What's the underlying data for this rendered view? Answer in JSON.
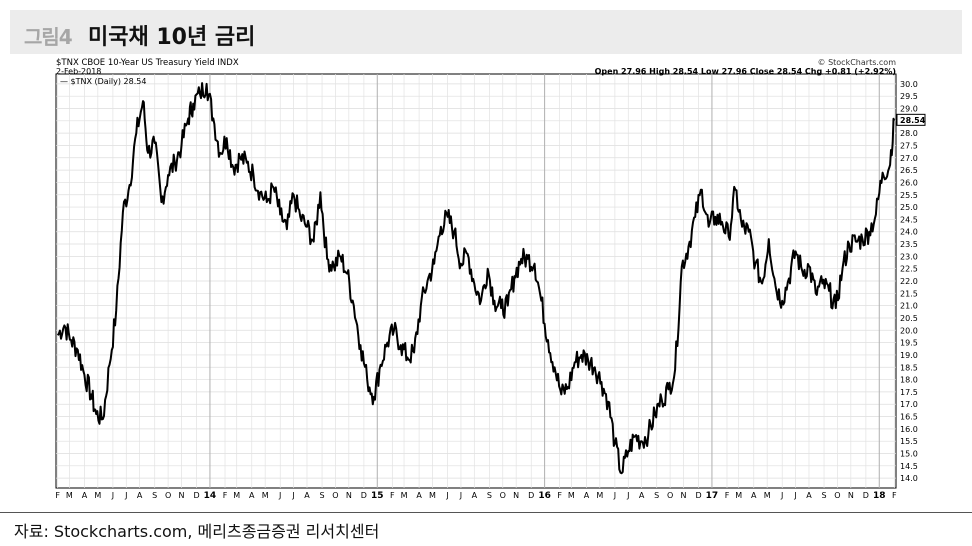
{
  "figure": {
    "label": "그림4",
    "title": "미국채 10년 금리"
  },
  "chart_header": {
    "symbol_line": "$TNX CBOE 10-Year US Treasury Yield INDX",
    "date": "2-Feb-2018",
    "copyright": "© StockCharts.com",
    "legend": "— $TNX (Daily) 28.54",
    "ohlc": "Open 27.96  High 28.54  Low 27.96  Close 28.54  Chg +0.81 (+2.92%)"
  },
  "source": "자료: Stockcharts.com, 메리츠종금증권 리서치센터",
  "chart_data": {
    "type": "line",
    "series": [
      {
        "name": "$TNX (Daily)",
        "x": [
          2013.09,
          2013.13,
          2013.17,
          2013.21,
          2013.25,
          2013.29,
          2013.32,
          2013.36,
          2013.4,
          2013.44,
          2013.48,
          2013.52,
          2013.56,
          2013.6,
          2013.63,
          2013.67,
          2013.71,
          2013.75,
          2013.79,
          2013.83,
          2013.87,
          2013.9,
          2013.94,
          2013.98,
          2014.02,
          2014.06,
          2014.1,
          2014.14,
          2014.18,
          2014.22,
          2014.26,
          2014.3,
          2014.34,
          2014.38,
          2014.42,
          2014.46,
          2014.5,
          2014.54,
          2014.58,
          2014.62,
          2014.66,
          2014.7,
          2014.74,
          2014.78,
          2014.82,
          2014.86,
          2014.9,
          2014.94,
          2014.98,
          2015.02,
          2015.06,
          2015.1,
          2015.14,
          2015.18,
          2015.22,
          2015.26,
          2015.3,
          2015.34,
          2015.38,
          2015.42,
          2015.46,
          2015.5,
          2015.54,
          2015.58,
          2015.62,
          2015.66,
          2015.7,
          2015.74,
          2015.78,
          2015.82,
          2015.86,
          2015.9,
          2015.94,
          2015.98,
          2016.02,
          2016.06,
          2016.1,
          2016.14,
          2016.18,
          2016.22,
          2016.26,
          2016.3,
          2016.34,
          2016.38,
          2016.42,
          2016.46,
          2016.5,
          2016.54,
          2016.58,
          2016.62,
          2016.66,
          2016.7,
          2016.74,
          2016.78,
          2016.82,
          2016.86,
          2016.9,
          2016.94,
          2016.98,
          2017.02,
          2017.06,
          2017.1,
          2017.14,
          2017.18,
          2017.22,
          2017.26,
          2017.3,
          2017.34,
          2017.38,
          2017.42,
          2017.46,
          2017.5,
          2017.54,
          2017.58,
          2017.62,
          2017.66,
          2017.7,
          2017.74,
          2017.78,
          2017.82,
          2017.86,
          2017.9,
          2017.94,
          2017.98,
          2018.02,
          2018.06,
          2018.09
        ],
        "y": [
          19.8,
          20.2,
          19.6,
          19.2,
          18.2,
          17.4,
          16.6,
          16.4,
          18.6,
          20.8,
          24.8,
          25.9,
          28.0,
          29.3,
          27.2,
          27.6,
          25.2,
          26.3,
          26.8,
          27.5,
          28.6,
          29.2,
          29.6,
          30.0,
          28.6,
          27.2,
          27.8,
          26.6,
          27.0,
          26.8,
          26.3,
          25.6,
          25.2,
          25.8,
          24.7,
          24.1,
          25.5,
          24.6,
          24.2,
          23.6,
          25.6,
          22.9,
          22.6,
          23.0,
          22.3,
          21.0,
          19.4,
          18.0,
          17.3,
          18.6,
          19.5,
          20.0,
          19.4,
          18.9,
          19.1,
          21.0,
          22.0,
          22.7,
          24.2,
          24.6,
          24.0,
          22.7,
          23.1,
          21.9,
          21.2,
          22.5,
          21.2,
          20.9,
          21.0,
          22.2,
          22.9,
          22.9,
          22.7,
          21.2,
          19.6,
          18.5,
          17.4,
          17.7,
          18.7,
          19.0,
          18.8,
          18.5,
          17.9,
          17.1,
          15.4,
          14.2,
          15.1,
          15.7,
          15.5,
          15.8,
          16.6,
          17.2,
          17.6,
          18.4,
          22.6,
          23.4,
          24.6,
          25.7,
          24.2,
          24.6,
          24.4,
          23.8,
          25.7,
          24.2,
          24.0,
          22.7,
          21.9,
          23.7,
          21.8,
          21.2,
          22.1,
          23.2,
          22.4,
          22.6,
          21.5,
          21.9,
          21.6,
          20.9,
          22.5,
          23.5,
          23.6,
          23.7,
          24.0,
          24.7,
          26.4,
          26.6,
          28.5
        ],
        "color": "#000000"
      }
    ],
    "x_ticks": [
      "F",
      "M",
      "A",
      "M",
      "J",
      "J",
      "A",
      "S",
      "O",
      "N",
      "D",
      "14",
      "F",
      "M",
      "A",
      "M",
      "J",
      "J",
      "A",
      "S",
      "O",
      "N",
      "D",
      "15",
      "F",
      "M",
      "A",
      "M",
      "J",
      "J",
      "A",
      "S",
      "O",
      "N",
      "D",
      "16",
      "F",
      "M",
      "A",
      "M",
      "J",
      "J",
      "A",
      "S",
      "O",
      "N",
      "D",
      "17",
      "F",
      "M",
      "A",
      "M",
      "J",
      "J",
      "A",
      "S",
      "O",
      "N",
      "D",
      "18",
      "F"
    ],
    "y_ticks": [
      "30.0",
      "29.5",
      "29.0",
      "28.5",
      "28.0",
      "27.5",
      "27.0",
      "26.5",
      "26.0",
      "25.5",
      "25.0",
      "24.5",
      "24.0",
      "23.5",
      "23.0",
      "22.5",
      "22.0",
      "21.5",
      "21.0",
      "20.5",
      "20.0",
      "19.5",
      "19.0",
      "18.5",
      "18.0",
      "17.5",
      "17.0",
      "16.5",
      "16.0",
      "15.5",
      "15.0",
      "14.5",
      "14.0"
    ],
    "y_tick_values": [
      30.0,
      29.5,
      29.0,
      28.5,
      28.0,
      27.5,
      27.0,
      26.5,
      26.0,
      25.5,
      25.0,
      24.5,
      24.0,
      23.5,
      23.0,
      22.5,
      22.0,
      21.5,
      21.0,
      20.5,
      20.0,
      19.5,
      19.0,
      18.5,
      18.0,
      17.5,
      17.0,
      16.5,
      16.0,
      15.5,
      15.0,
      14.5,
      14.0
    ],
    "x_tick_values": [
      2013.09,
      2013.16,
      2013.25,
      2013.33,
      2013.42,
      2013.5,
      2013.58,
      2013.67,
      2013.75,
      2013.83,
      2013.92,
      2014.0,
      2014.09,
      2014.16,
      2014.25,
      2014.33,
      2014.42,
      2014.5,
      2014.58,
      2014.67,
      2014.75,
      2014.83,
      2014.92,
      2015.0,
      2015.09,
      2015.16,
      2015.25,
      2015.33,
      2015.42,
      2015.5,
      2015.58,
      2015.67,
      2015.75,
      2015.83,
      2015.92,
      2016.0,
      2016.09,
      2016.16,
      2016.25,
      2016.33,
      2016.42,
      2016.5,
      2016.58,
      2016.67,
      2016.75,
      2016.83,
      2016.92,
      2017.0,
      2017.09,
      2017.16,
      2017.25,
      2017.33,
      2017.42,
      2017.5,
      2017.58,
      2017.67,
      2017.75,
      2017.83,
      2017.92,
      2018.0,
      2018.09
    ],
    "year_ticks": [
      "14",
      "15",
      "16",
      "17",
      "18"
    ],
    "last_value_label": "28.54",
    "last_value": 28.54,
    "xlim": [
      2013.08,
      2018.1
    ],
    "ylim": [
      13.6,
      30.4
    ],
    "grid": true
  }
}
